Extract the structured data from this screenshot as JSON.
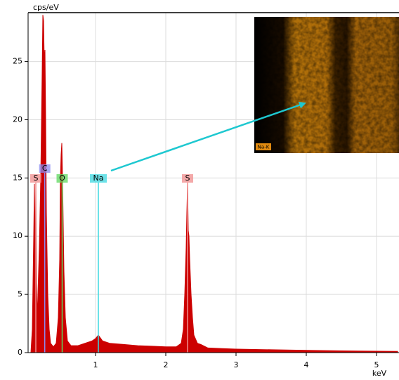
{
  "chart_data": {
    "type": "area",
    "y_label": "cps/eV",
    "x_label": "keV",
    "x": [
      0.08,
      0.1,
      0.12,
      0.13,
      0.14,
      0.15,
      0.16,
      0.17,
      0.18,
      0.2,
      0.22,
      0.24,
      0.25,
      0.26,
      0.27,
      0.28,
      0.29,
      0.3,
      0.32,
      0.34,
      0.36,
      0.4,
      0.44,
      0.47,
      0.49,
      0.5,
      0.51,
      0.52,
      0.53,
      0.54,
      0.55,
      0.57,
      0.6,
      0.65,
      0.75,
      0.85,
      0.95,
      1.0,
      1.04,
      1.1,
      1.2,
      1.4,
      1.6,
      1.8,
      2.0,
      2.15,
      2.22,
      2.25,
      2.27,
      2.29,
      2.3,
      2.31,
      2.32,
      2.33,
      2.34,
      2.36,
      2.38,
      2.4,
      2.45,
      2.5,
      2.6,
      2.8,
      3.0,
      3.5,
      4.0,
      4.5,
      5.0,
      5.3
    ],
    "values": [
      0,
      2,
      10,
      14.5,
      8,
      14,
      6,
      3,
      5,
      9,
      15,
      24,
      29,
      28.5,
      25,
      26,
      20,
      12,
      5,
      2,
      0.8,
      0.5,
      0.8,
      3,
      8,
      15,
      17,
      18,
      15,
      11,
      7,
      3,
      1,
      0.6,
      0.6,
      0.8,
      1,
      1.2,
      1.5,
      1,
      0.8,
      0.7,
      0.6,
      0.55,
      0.5,
      0.5,
      0.8,
      2,
      5,
      9,
      12,
      14.5,
      10.5,
      10,
      8,
      5,
      3,
      1.5,
      0.8,
      0.7,
      0.4,
      0.35,
      0.3,
      0.25,
      0.2,
      0.15,
      0.12,
      0.1
    ],
    "color": "#cc0000",
    "markers": [
      {
        "label": "S",
        "x": 0.15,
        "color": "#f08c8c"
      },
      {
        "label": "C",
        "x": 0.277,
        "color": "#8c8cf0"
      },
      {
        "label": "O",
        "x": 0.525,
        "color": "#5ed85e"
      },
      {
        "label": "Na",
        "x": 1.04,
        "color": "#3cd8e0"
      },
      {
        "label": "S",
        "x": 2.31,
        "color": "#f08c8c"
      }
    ],
    "inset_label": "Na-K",
    "xlim": [
      0.04,
      5.32
    ],
    "xticks": [
      1,
      2,
      3,
      4,
      5
    ],
    "ylim": [
      0,
      29.2
    ],
    "yticks": [
      0,
      5,
      10,
      15,
      20,
      25
    ],
    "grid": true
  }
}
